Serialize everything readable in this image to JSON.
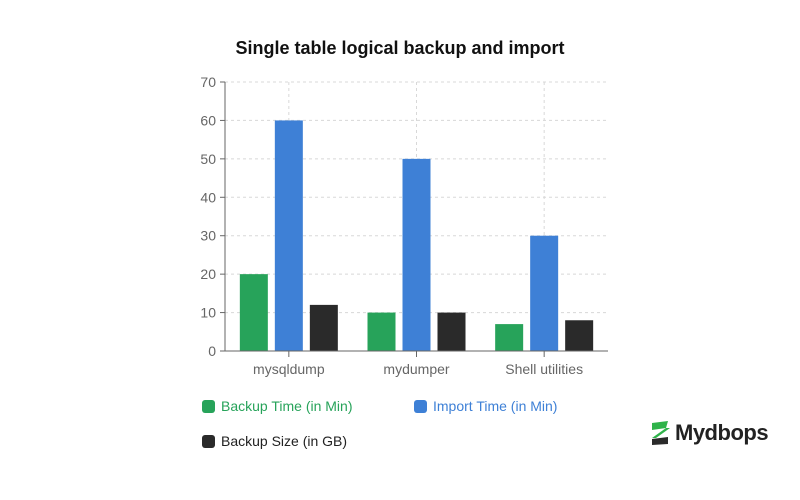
{
  "chart_data": {
    "type": "bar",
    "title": "Single table logical backup and import",
    "categories": [
      "mysqldump",
      "mydumper",
      "Shell utilities"
    ],
    "series": [
      {
        "name": "Backup Time (in Min)",
        "color": "#27a35a",
        "values": [
          20,
          10,
          7
        ]
      },
      {
        "name": "Import Time (in Min)",
        "color": "#3e80d6",
        "values": [
          60,
          50,
          30
        ]
      },
      {
        "name": "Backup Size (in GB)",
        "color": "#2a2a2a",
        "values": [
          12,
          10,
          8
        ]
      }
    ],
    "xlabel": "",
    "ylabel": "",
    "ylim": [
      0,
      70
    ],
    "yticks": [
      0,
      10,
      20,
      30,
      40,
      50,
      60,
      70
    ],
    "grid": true,
    "legend_position": "bottom"
  },
  "legend": [
    {
      "label": "Backup Time (in Min)",
      "color": "#27a35a",
      "text_color": "#27a35a"
    },
    {
      "label": "Import Time (in Min)",
      "color": "#3e80d6",
      "text_color": "#3e80d6"
    },
    {
      "label": "Backup Size (in GB)",
      "color": "#2a2a2a",
      "text_color": "#222222"
    }
  ],
  "logo": {
    "text": "Mydbops"
  }
}
